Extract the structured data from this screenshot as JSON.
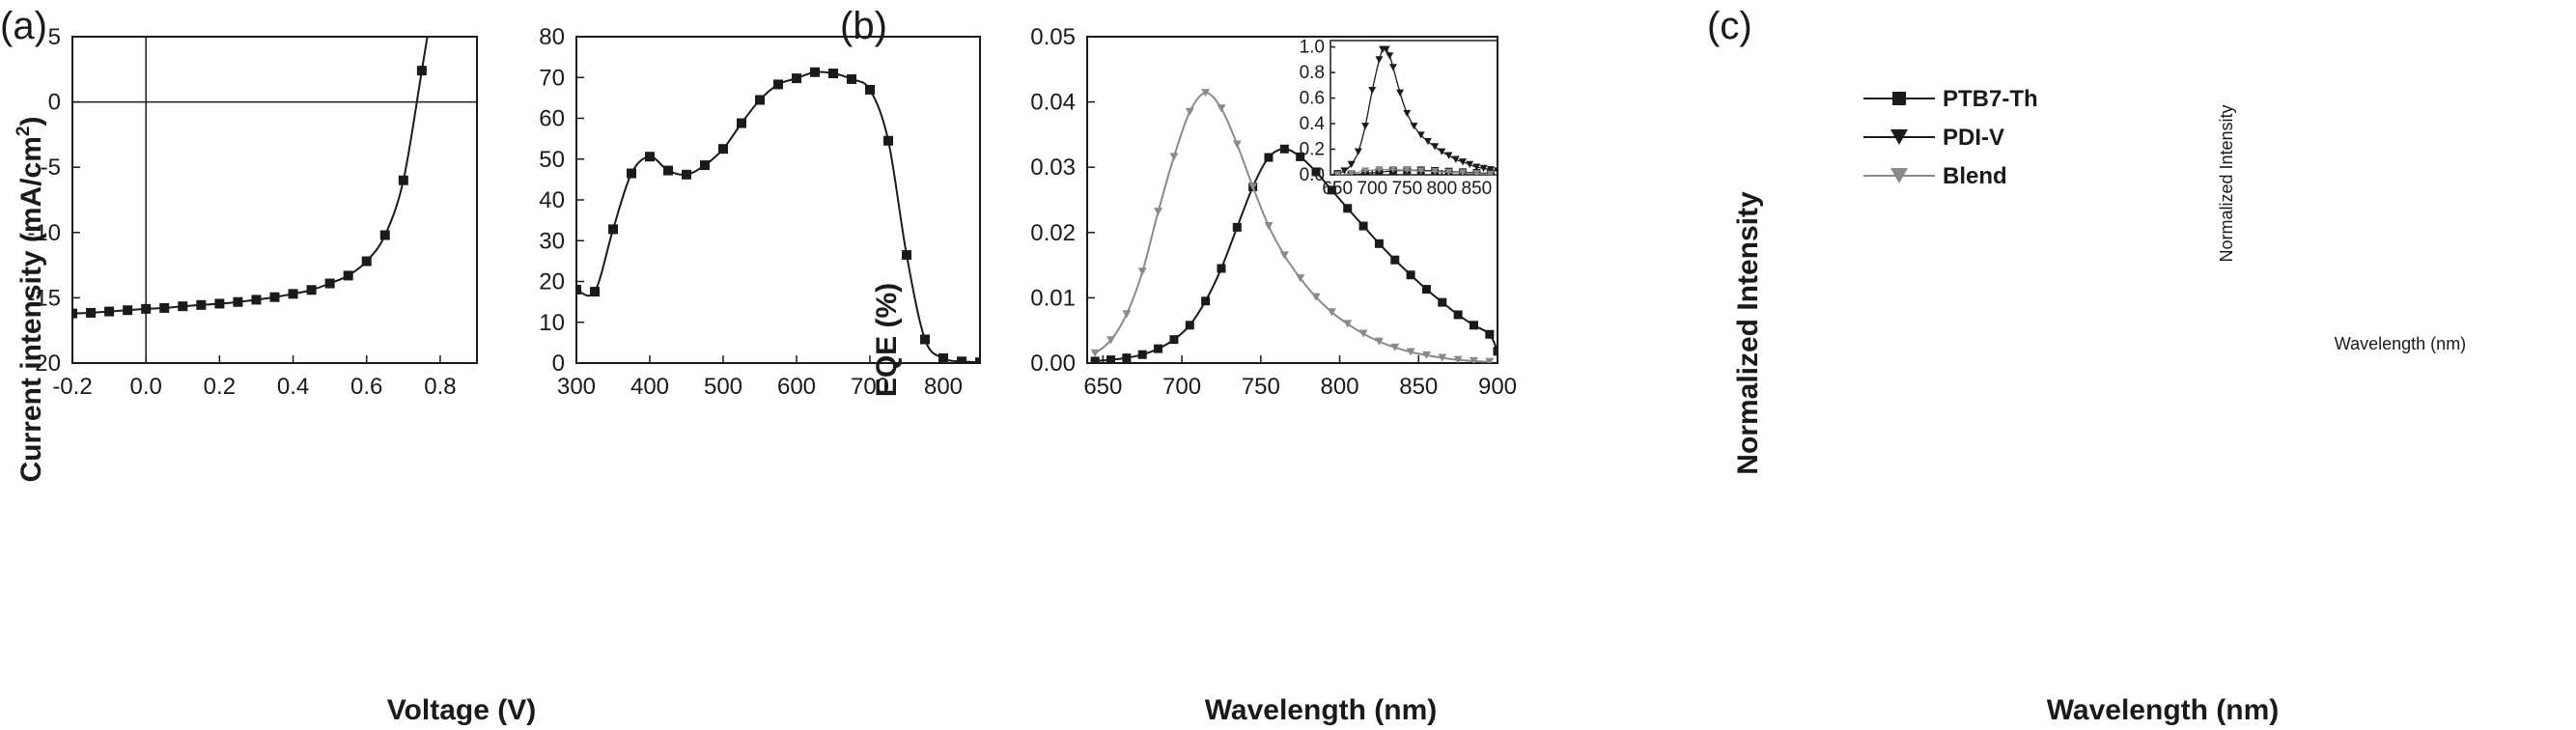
{
  "chart_data": [
    {
      "panel": "(a)",
      "type": "line",
      "xlabel": "Voltage (V)",
      "ylabel": "Current intensity (mA/cm",
      "ylabel_sup": "2",
      "ylabel_end": ")",
      "xlim": [
        -0.2,
        0.9
      ],
      "ylim": [
        -20,
        5
      ],
      "xticks": [
        "-0.2",
        "0.0",
        "0.2",
        "0.4",
        "0.6",
        "0.8"
      ],
      "yticks": [
        "5",
        "0",
        "-5",
        "-10",
        "-15",
        "-20"
      ],
      "zero_lines": true,
      "marker": "square",
      "series": [
        {
          "x": [
            -0.2,
            -0.15,
            -0.1,
            -0.05,
            0.0,
            0.05,
            0.1,
            0.15,
            0.2,
            0.25,
            0.3,
            0.35,
            0.4,
            0.45,
            0.5,
            0.55,
            0.6,
            0.65,
            0.7,
            0.75
          ],
          "y": [
            -16.2,
            -16.15,
            -16.05,
            -15.95,
            -15.85,
            -15.78,
            -15.65,
            -15.55,
            -15.45,
            -15.32,
            -15.15,
            -14.95,
            -14.7,
            -14.4,
            -13.9,
            -13.3,
            -12.2,
            -10.2,
            -6.0,
            2.4
          ]
        }
      ]
    },
    {
      "panel": "(b)",
      "type": "line",
      "xlabel": "Wavelength (nm)",
      "ylabel": "EQE (%)",
      "xlim": [
        300,
        850
      ],
      "ylim": [
        0,
        80
      ],
      "xticks": [
        "300",
        "400",
        "500",
        "600",
        "700",
        "800"
      ],
      "yticks": [
        "0",
        "10",
        "20",
        "30",
        "40",
        "50",
        "60",
        "70",
        "80"
      ],
      "marker": "square",
      "series": [
        {
          "x": [
            300,
            325,
            350,
            375,
            400,
            425,
            450,
            475,
            500,
            525,
            550,
            575,
            600,
            625,
            650,
            675,
            700,
            725,
            750,
            775,
            800,
            825,
            850
          ],
          "y": [
            18.0,
            17.5,
            32.8,
            46.5,
            50.6,
            47.2,
            46.2,
            48.5,
            52.5,
            58.8,
            64.5,
            68.3,
            69.8,
            71.3,
            71.0,
            69.6,
            67.0,
            54.5,
            26.5,
            5.8,
            1.2,
            0.4,
            0.2
          ]
        }
      ]
    },
    {
      "panel": "(c)",
      "type": "line",
      "xlabel": "Wavelength (nm)",
      "ylabel": "Normalized Intensity",
      "xlim": [
        640,
        900
      ],
      "ylim": [
        0,
        0.05
      ],
      "xticks": [
        "650",
        "700",
        "750",
        "800",
        "850",
        "900"
      ],
      "yticks": [
        "0.00",
        "0.01",
        "0.02",
        "0.03",
        "0.04",
        "0.05"
      ],
      "legend_position": "top-left",
      "series": [
        {
          "name": "PTB7-Th",
          "marker": "square",
          "color": "#1a1a1a",
          "x": [
            645,
            655,
            665,
            675,
            685,
            695,
            705,
            715,
            725,
            735,
            745,
            755,
            765,
            775,
            785,
            795,
            805,
            815,
            825,
            835,
            845,
            855,
            865,
            875,
            885,
            895,
            900
          ],
          "y": [
            0.0003,
            0.0005,
            0.0008,
            0.0013,
            0.0022,
            0.0036,
            0.0058,
            0.0095,
            0.0145,
            0.0208,
            0.027,
            0.0315,
            0.0328,
            0.0316,
            0.0293,
            0.0265,
            0.0237,
            0.021,
            0.0183,
            0.0158,
            0.0135,
            0.0113,
            0.0093,
            0.0074,
            0.0058,
            0.0044,
            0.0018
          ]
        },
        {
          "name": "PDI-V",
          "marker": "triangle-down",
          "color": "#1a1a1a",
          "x": [],
          "y": []
        },
        {
          "name": "Blend",
          "marker": "triangle-down",
          "color": "#8a8a8a",
          "x": [
            645,
            655,
            665,
            675,
            685,
            695,
            705,
            715,
            725,
            735,
            745,
            755,
            765,
            775,
            785,
            795,
            805,
            815,
            825,
            835,
            845,
            855,
            865,
            875,
            885,
            895
          ],
          "y": [
            0.0015,
            0.0035,
            0.0075,
            0.014,
            0.0232,
            0.0316,
            0.0385,
            0.0414,
            0.039,
            0.0335,
            0.027,
            0.021,
            0.0165,
            0.013,
            0.0101,
            0.0078,
            0.006,
            0.0045,
            0.0033,
            0.0024,
            0.0017,
            0.0012,
            0.0008,
            0.0005,
            0.0003,
            0.0002
          ]
        }
      ],
      "inset": {
        "xlabel": "Wavelength (nm)",
        "ylabel": "Normalized Intensity",
        "xlim": [
          640,
          880
        ],
        "ylim": [
          0,
          1.05
        ],
        "xticks": [
          "650",
          "700",
          "750",
          "800",
          "850"
        ],
        "yticks": [
          "0.0",
          "0.2",
          "0.4",
          "0.6",
          "0.8",
          "1.0"
        ],
        "series": [
          {
            "name": "PDI-V",
            "marker": "triangle-down",
            "color": "#1a1a1a",
            "x": [
              650,
              660,
              670,
              680,
              690,
              700,
              710,
              715,
              720,
              725,
              730,
              740,
              750,
              760,
              770,
              780,
              790,
              800,
              810,
              820,
              830,
              840,
              850,
              860,
              870,
              880
            ],
            "y": [
              0.01,
              0.03,
              0.08,
              0.18,
              0.38,
              0.66,
              0.9,
              0.98,
              0.98,
              0.93,
              0.84,
              0.64,
              0.48,
              0.38,
              0.31,
              0.26,
              0.22,
              0.18,
              0.15,
              0.12,
              0.1,
              0.08,
              0.06,
              0.05,
              0.04,
              0.03
            ]
          },
          {
            "name": "PTB7-Th",
            "marker": "square",
            "color": "#1a1a1a",
            "x": [
              650,
              670,
              690,
              710,
              730,
              750,
              770,
              790,
              810,
              830,
              850,
              870
            ],
            "y": [
              0.0,
              0.0,
              0.01,
              0.02,
              0.03,
              0.035,
              0.035,
              0.03,
              0.025,
              0.02,
              0.015,
              0.01
            ]
          },
          {
            "name": "Blend",
            "marker": "triangle-down",
            "color": "#8a8a8a",
            "x": [
              650,
              670,
              690,
              710,
              730,
              750,
              770,
              790,
              810,
              830,
              850,
              870
            ],
            "y": [
              0.0,
              0.01,
              0.03,
              0.04,
              0.04,
              0.035,
              0.03,
              0.025,
              0.02,
              0.015,
              0.01,
              0.005
            ]
          }
        ]
      }
    }
  ]
}
